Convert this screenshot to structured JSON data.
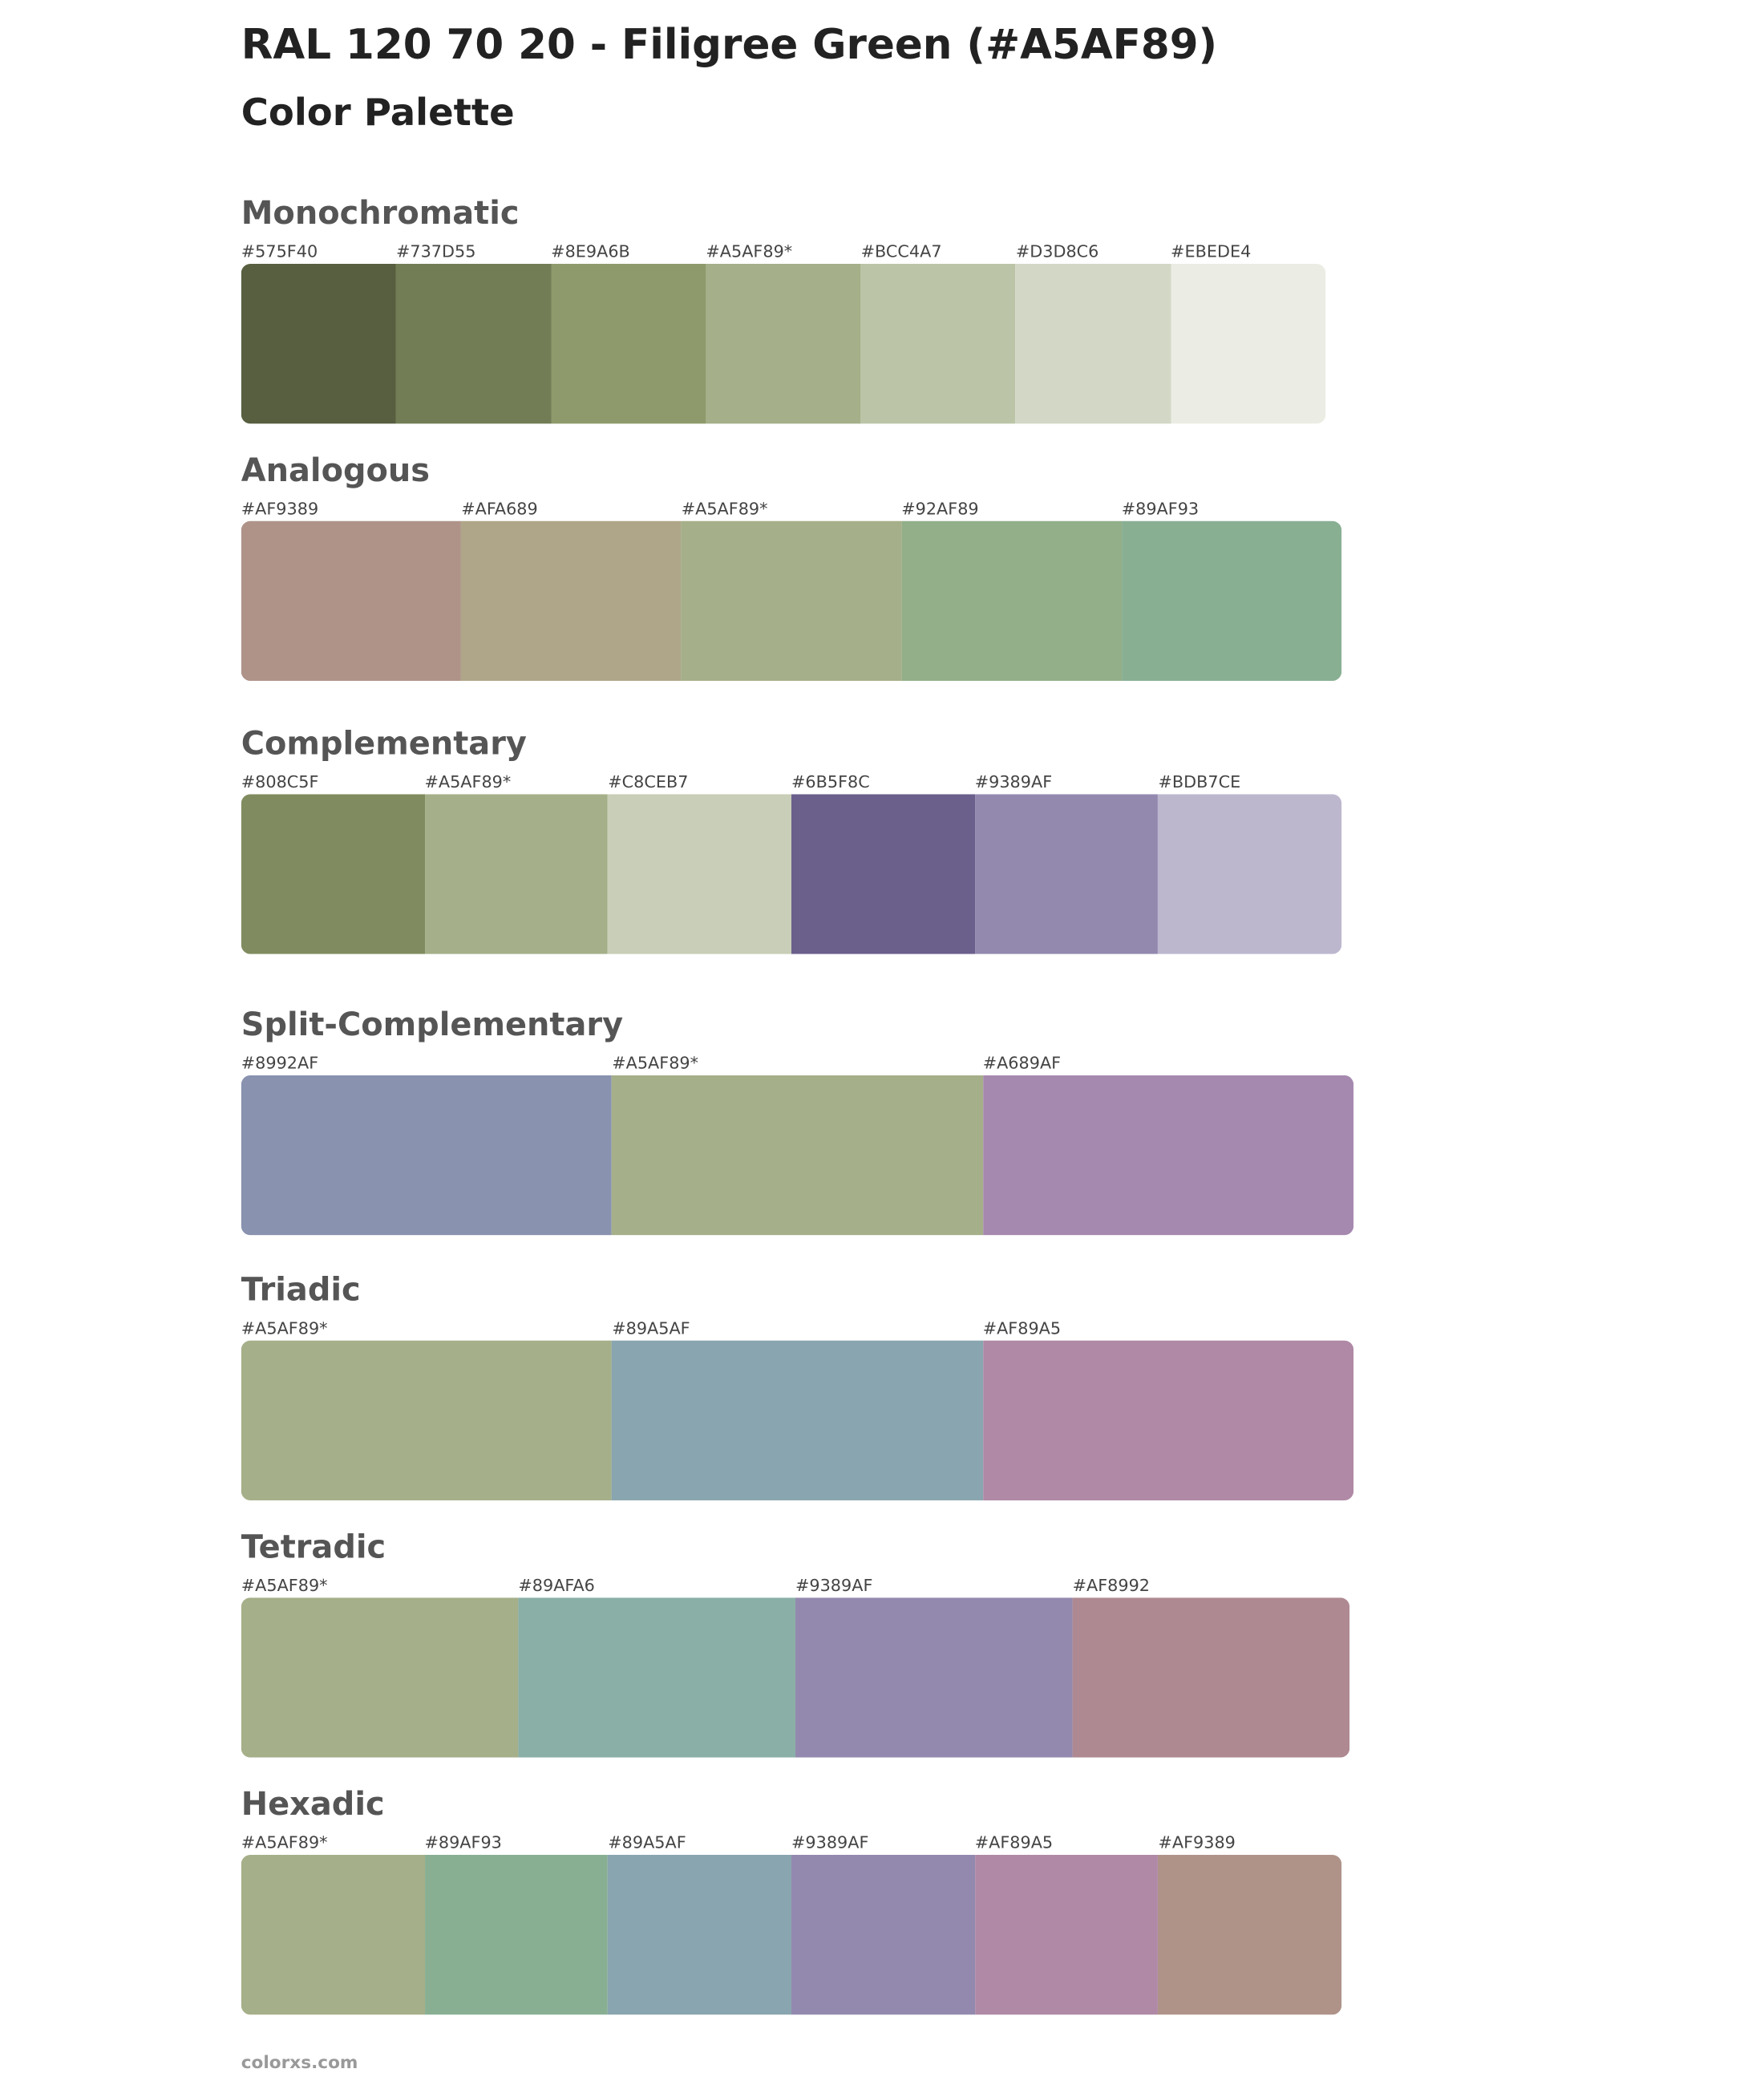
{
  "header": {
    "title": "RAL 120 70 20 - Filigree Green (#A5AF89)",
    "subtitle": "Color Palette"
  },
  "sections": [
    {
      "name": "Monochromatic",
      "swatches": [
        {
          "label": "#575F40",
          "color": "#575F40"
        },
        {
          "label": "#737D55",
          "color": "#737D55"
        },
        {
          "label": "#8E9A6B",
          "color": "#8E9A6B"
        },
        {
          "label": "#A5AF89*",
          "color": "#A5AF89"
        },
        {
          "label": "#BCC4A7",
          "color": "#BCC4A7"
        },
        {
          "label": "#D3D8C6",
          "color": "#D3D8C6"
        },
        {
          "label": "#EBEDE4",
          "color": "#EBEDE4"
        }
      ]
    },
    {
      "name": "Analogous",
      "swatches": [
        {
          "label": "#AF9389",
          "color": "#AF9389"
        },
        {
          "label": "#AFA689",
          "color": "#AFA689"
        },
        {
          "label": "#A5AF89*",
          "color": "#A5AF89"
        },
        {
          "label": "#92AF89",
          "color": "#92AF89"
        },
        {
          "label": "#89AF93",
          "color": "#89AF93"
        }
      ]
    },
    {
      "name": "Complementary",
      "swatches": [
        {
          "label": "#808C5F",
          "color": "#808C5F"
        },
        {
          "label": "#A5AF89*",
          "color": "#A5AF89"
        },
        {
          "label": "#C8CEB7",
          "color": "#C8CEB7"
        },
        {
          "label": "#6B5F8C",
          "color": "#6B5F8C"
        },
        {
          "label": "#9389AF",
          "color": "#9389AF"
        },
        {
          "label": "#BDB7CE",
          "color": "#BDB7CE"
        }
      ]
    },
    {
      "name": "Split-Complementary",
      "swatches": [
        {
          "label": "#8992AF",
          "color": "#8992AF"
        },
        {
          "label": "#A5AF89*",
          "color": "#A5AF89"
        },
        {
          "label": "#A689AF",
          "color": "#A689AF"
        }
      ]
    },
    {
      "name": "Triadic",
      "swatches": [
        {
          "label": "#A5AF89*",
          "color": "#A5AF89"
        },
        {
          "label": "#89A5AF",
          "color": "#89A5AF"
        },
        {
          "label": "#AF89A5",
          "color": "#AF89A5"
        }
      ]
    },
    {
      "name": "Tetradic",
      "swatches": [
        {
          "label": "#A5AF89*",
          "color": "#A5AF89"
        },
        {
          "label": "#89AFA6",
          "color": "#89AFA6"
        },
        {
          "label": "#9389AF",
          "color": "#9389AF"
        },
        {
          "label": "#AF8992",
          "color": "#AF8992"
        }
      ]
    },
    {
      "name": "Hexadic",
      "swatches": [
        {
          "label": "#A5AF89*",
          "color": "#A5AF89"
        },
        {
          "label": "#89AF93",
          "color": "#89AF93"
        },
        {
          "label": "#89A5AF",
          "color": "#89A5AF"
        },
        {
          "label": "#9389AF",
          "color": "#9389AF"
        },
        {
          "label": "#AF89A5",
          "color": "#AF89A5"
        },
        {
          "label": "#AF9389",
          "color": "#AF9389"
        }
      ]
    }
  ],
  "footer": "colorxs.com"
}
